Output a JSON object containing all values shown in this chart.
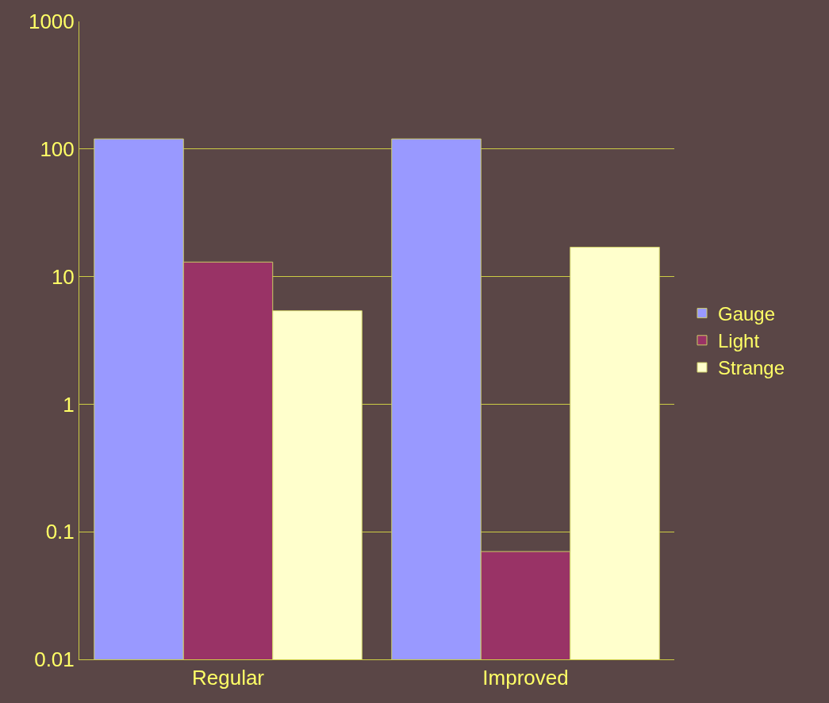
{
  "chart_data": {
    "type": "bar",
    "categories": [
      "Regular",
      "Improved"
    ],
    "series": [
      {
        "name": "Gauge",
        "color": "#9999ff",
        "values": [
          120,
          120
        ]
      },
      {
        "name": "Light",
        "color": "#993366",
        "values": [
          13,
          0.07
        ]
      },
      {
        "name": "Strange",
        "color": "#ffffcc",
        "values": [
          5.4,
          17
        ]
      }
    ],
    "log": "y",
    "ylim": [
      0.01,
      1000
    ],
    "yticks": [
      0.01,
      0.1,
      1,
      10,
      100,
      1000
    ],
    "grid": "y",
    "legend": "right"
  }
}
